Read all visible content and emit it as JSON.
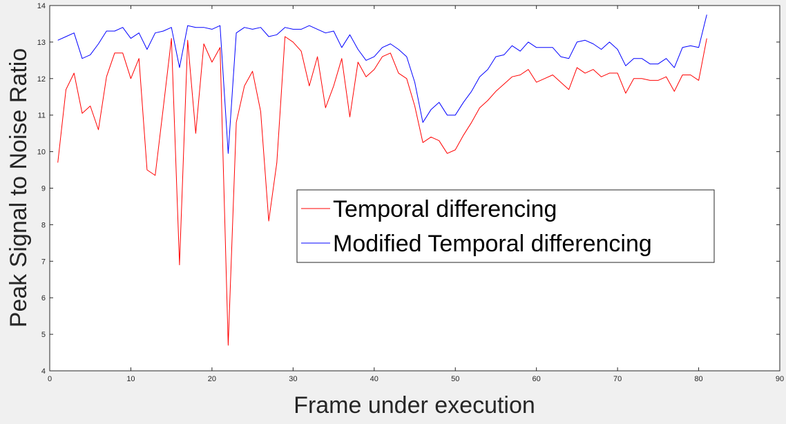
{
  "chart_data": {
    "type": "line",
    "xlabel": "Frame under execution",
    "ylabel": "Peak Signal to Noise Ratio",
    "xlim": [
      0,
      90
    ],
    "ylim": [
      4,
      14
    ],
    "xticks": [
      0,
      10,
      20,
      30,
      40,
      50,
      60,
      70,
      80,
      90
    ],
    "yticks": [
      4,
      5,
      6,
      7,
      8,
      9,
      10,
      11,
      12,
      13,
      14
    ],
    "grid": false,
    "legend_position": "center-right",
    "x": [
      1,
      2,
      3,
      4,
      5,
      6,
      7,
      8,
      9,
      10,
      11,
      12,
      13,
      14,
      15,
      16,
      17,
      18,
      19,
      20,
      21,
      22,
      23,
      24,
      25,
      26,
      27,
      28,
      29,
      30,
      31,
      32,
      33,
      34,
      35,
      36,
      37,
      38,
      39,
      40,
      41,
      42,
      43,
      44,
      45,
      46,
      47,
      48,
      49,
      50,
      51,
      52,
      53,
      54,
      55,
      56,
      57,
      58,
      59,
      60,
      61,
      62,
      63,
      64,
      65,
      66,
      67,
      68,
      69,
      70,
      71,
      72,
      73,
      74,
      75,
      76,
      77,
      78,
      79,
      80,
      81
    ],
    "series": [
      {
        "name": "Temporal differencing",
        "color": "#ff0000",
        "values": [
          9.7,
          11.7,
          12.15,
          11.05,
          11.25,
          10.6,
          12.05,
          12.7,
          12.7,
          12.0,
          12.55,
          9.5,
          9.35,
          11.2,
          13.1,
          6.9,
          13.05,
          10.5,
          12.95,
          12.45,
          12.85,
          4.7,
          10.8,
          11.8,
          12.2,
          11.1,
          8.1,
          9.7,
          13.15,
          13.0,
          12.75,
          11.8,
          12.6,
          11.2,
          11.8,
          12.55,
          10.95,
          12.45,
          12.05,
          12.25,
          12.6,
          12.7,
          12.15,
          12.0,
          11.25,
          10.25,
          10.4,
          10.3,
          9.95,
          10.05,
          10.45,
          10.8,
          11.2,
          11.4,
          11.65,
          11.85,
          12.05,
          12.1,
          12.25,
          11.9,
          12.0,
          12.1,
          11.9,
          11.7,
          12.3,
          12.15,
          12.25,
          12.05,
          12.15,
          12.15,
          11.6,
          12.0,
          12.0,
          11.95,
          11.95,
          12.05,
          11.65,
          12.1,
          12.1,
          11.95,
          13.1
        ]
      },
      {
        "name": "Modified Temporal differencing",
        "color": "#0000ff",
        "values": [
          13.05,
          13.15,
          13.25,
          12.55,
          12.65,
          12.95,
          13.3,
          13.3,
          13.4,
          13.1,
          13.25,
          12.8,
          13.25,
          13.3,
          13.4,
          12.3,
          13.45,
          13.4,
          13.4,
          13.35,
          13.45,
          9.95,
          13.25,
          13.4,
          13.35,
          13.4,
          13.15,
          13.2,
          13.4,
          13.35,
          13.35,
          13.45,
          13.35,
          13.25,
          13.3,
          12.85,
          13.2,
          12.8,
          12.5,
          12.6,
          12.85,
          12.95,
          12.8,
          12.6,
          11.9,
          10.8,
          11.15,
          11.35,
          11.0,
          11.0,
          11.35,
          11.65,
          12.05,
          12.25,
          12.6,
          12.65,
          12.9,
          12.75,
          13.0,
          12.85,
          12.85,
          12.85,
          12.6,
          12.55,
          13.0,
          13.05,
          12.95,
          12.8,
          13.0,
          12.8,
          12.35,
          12.55,
          12.55,
          12.4,
          12.4,
          12.55,
          12.3,
          12.85,
          12.9,
          12.85,
          13.75
        ]
      }
    ]
  }
}
